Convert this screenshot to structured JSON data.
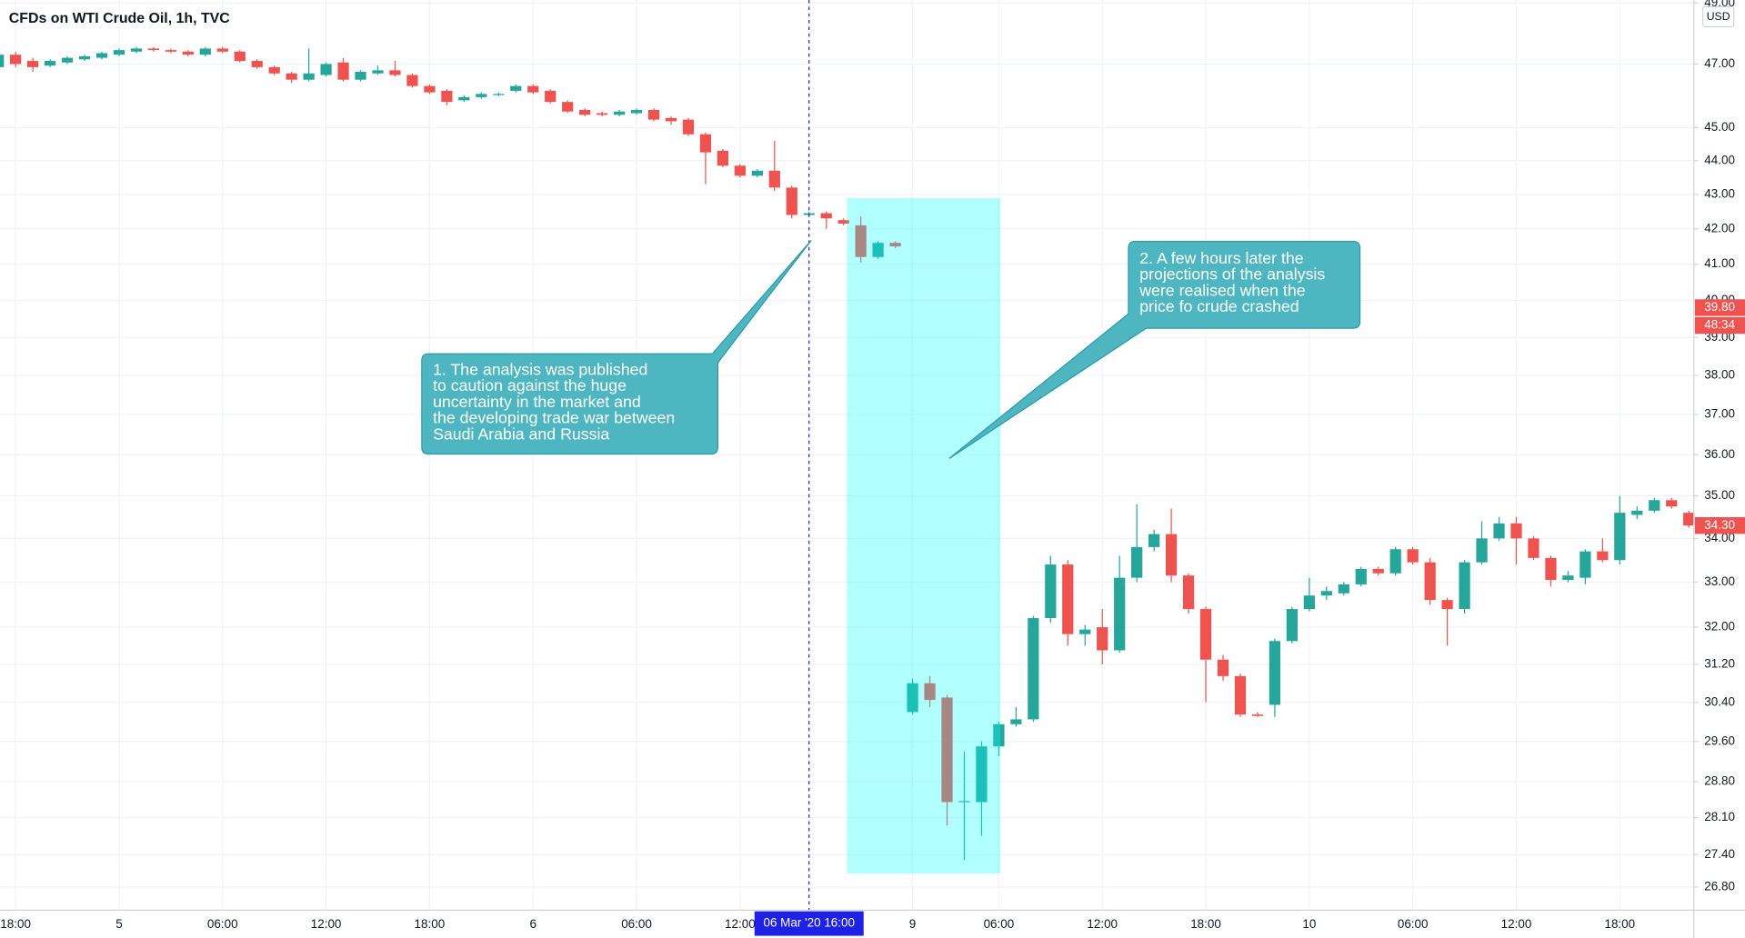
{
  "chart_data": {
    "type": "candlestick",
    "title": "CFDs on WTI Crude Oil, 1h, TVC",
    "currency": "USD",
    "log_scale": true,
    "grid": true,
    "up_color": "#26a69a",
    "down_color": "#ef5350",
    "categories": [
      null,
      "18:00",
      null,
      null,
      null,
      null,
      null,
      "5",
      null,
      null,
      null,
      null,
      null,
      "06:00",
      null,
      null,
      null,
      null,
      null,
      "12:00",
      null,
      null,
      null,
      null,
      null,
      "18:00",
      null,
      null,
      null,
      null,
      null,
      "6",
      null,
      null,
      null,
      null,
      null,
      "06:00",
      null,
      null,
      null,
      null,
      null,
      "12:00",
      null,
      null,
      null,
      "06 Mar '20  16:00",
      null,
      null,
      null,
      null,
      null,
      "9",
      null,
      null,
      null,
      null,
      "06:00",
      null,
      null,
      null,
      null,
      null,
      "12:00",
      null,
      null,
      null,
      null,
      null,
      "18:00",
      null,
      null,
      null,
      null,
      null,
      "10",
      null,
      null,
      null,
      null,
      null,
      "06:00",
      null,
      null,
      null,
      null,
      null,
      "12:00",
      null,
      null,
      null,
      null,
      null,
      "18:00",
      null,
      null,
      null,
      null
    ],
    "open": [
      46.9,
      47.3,
      47.1,
      46.95,
      47.05,
      47.15,
      47.2,
      47.3,
      47.4,
      47.5,
      47.45,
      47.4,
      47.3,
      47.5,
      47.4,
      47.1,
      46.9,
      46.7,
      46.5,
      46.65,
      47.05,
      46.5,
      46.7,
      46.8,
      46.65,
      46.3,
      46.15,
      45.85,
      45.95,
      46.02,
      46.15,
      46.3,
      46.15,
      45.8,
      45.55,
      45.45,
      45.4,
      45.45,
      45.55,
      45.3,
      45.25,
      44.8,
      44.3,
      43.85,
      43.55,
      43.7,
      43.2,
      42.4,
      42.45,
      42.25,
      42.1,
      41.2,
      41.6,
      30.2,
      30.8,
      30.5,
      28.4,
      28.4,
      29.5,
      29.95,
      30.05,
      32.2,
      33.4,
      31.85,
      32.0,
      31.5,
      33.1,
      33.8,
      34.1,
      33.15,
      32.4,
      31.3,
      30.95,
      30.15,
      30.35,
      31.7,
      32.4,
      32.7,
      32.75,
      32.95,
      33.3,
      33.2,
      33.75,
      33.45,
      32.6,
      32.4,
      33.45,
      34.0,
      34.35,
      34.0,
      33.55,
      33.05,
      33.1,
      33.7,
      33.5,
      34.55,
      34.65,
      34.9,
      34.6
    ],
    "high": [
      47.4,
      47.4,
      47.2,
      47.15,
      47.25,
      47.3,
      47.4,
      47.5,
      47.55,
      47.55,
      47.5,
      47.45,
      47.55,
      47.55,
      47.45,
      47.15,
      46.95,
      46.75,
      47.5,
      47.05,
      47.2,
      46.8,
      46.95,
      47.1,
      46.7,
      46.35,
      46.2,
      46.0,
      46.1,
      46.1,
      46.35,
      46.35,
      46.2,
      45.85,
      45.6,
      45.5,
      45.55,
      45.6,
      45.6,
      45.35,
      45.3,
      44.85,
      44.35,
      43.9,
      43.75,
      44.6,
      43.25,
      42.5,
      42.5,
      42.3,
      42.35,
      41.65,
      41.65,
      30.9,
      30.95,
      30.55,
      29.4,
      29.6,
      30.0,
      30.3,
      32.25,
      33.6,
      33.5,
      32.05,
      32.4,
      33.6,
      34.8,
      34.2,
      34.7,
      33.2,
      32.45,
      31.4,
      31.0,
      30.2,
      31.75,
      32.45,
      33.1,
      32.9,
      33.0,
      33.35,
      33.35,
      33.8,
      33.8,
      33.55,
      32.65,
      33.5,
      34.4,
      34.5,
      34.5,
      34.05,
      33.6,
      33.25,
      33.75,
      34.0,
      35.0,
      34.75,
      34.95,
      34.95,
      34.65
    ],
    "low": [
      46.85,
      46.9,
      46.75,
      46.9,
      47.0,
      47.1,
      47.15,
      47.25,
      47.35,
      47.4,
      47.35,
      47.25,
      47.25,
      47.35,
      47.05,
      46.85,
      46.65,
      46.4,
      46.45,
      46.6,
      46.45,
      46.45,
      46.65,
      46.6,
      46.25,
      46.05,
      45.7,
      45.8,
      45.9,
      45.98,
      46.1,
      46.05,
      45.75,
      45.45,
      45.35,
      45.35,
      45.35,
      45.4,
      45.2,
      45.1,
      44.75,
      43.3,
      43.8,
      43.5,
      43.5,
      43.1,
      42.3,
      42.35,
      42.0,
      42.1,
      41.05,
      41.15,
      41.45,
      30.15,
      30.3,
      27.95,
      27.3,
      27.75,
      29.3,
      29.9,
      30.0,
      32.1,
      31.6,
      31.6,
      31.2,
      31.45,
      33.0,
      33.7,
      33.0,
      32.3,
      30.4,
      30.85,
      30.1,
      30.1,
      30.1,
      31.65,
      32.35,
      32.6,
      32.7,
      32.9,
      33.15,
      33.15,
      33.4,
      32.5,
      31.6,
      32.3,
      33.4,
      33.95,
      33.4,
      33.5,
      32.9,
      33.0,
      32.95,
      33.45,
      33.4,
      34.45,
      34.6,
      34.7,
      34.25
    ],
    "close": [
      47.3,
      47.0,
      46.9,
      47.1,
      47.2,
      47.25,
      47.35,
      47.45,
      47.5,
      47.45,
      47.4,
      47.3,
      47.5,
      47.4,
      47.1,
      46.9,
      46.7,
      46.5,
      46.7,
      47.0,
      46.5,
      46.75,
      46.8,
      46.65,
      46.3,
      46.1,
      45.8,
      45.95,
      46.05,
      46.05,
      46.3,
      46.1,
      45.8,
      45.5,
      45.4,
      45.4,
      45.5,
      45.55,
      45.25,
      45.2,
      44.8,
      44.25,
      43.85,
      43.55,
      43.7,
      43.2,
      42.4,
      42.45,
      42.3,
      42.15,
      41.2,
      41.6,
      41.5,
      30.8,
      30.45,
      28.4,
      28.42,
      29.5,
      29.95,
      30.05,
      32.2,
      33.4,
      31.85,
      31.95,
      31.5,
      33.1,
      33.8,
      34.1,
      33.15,
      32.4,
      31.3,
      30.95,
      30.15,
      30.12,
      31.7,
      32.4,
      32.7,
      32.8,
      32.95,
      33.3,
      33.2,
      33.75,
      33.45,
      32.6,
      32.4,
      33.45,
      34.0,
      34.35,
      34.0,
      33.55,
      33.05,
      33.15,
      33.7,
      33.5,
      34.6,
      34.65,
      34.9,
      34.75,
      34.3
    ],
    "ylim": [
      26.38,
      49.1
    ],
    "yticks": [
      {
        "value": 49,
        "label": "49.00"
      },
      {
        "value": 47,
        "label": "47.00"
      },
      {
        "value": 45,
        "label": "45.00"
      },
      {
        "value": 44,
        "label": "44.00"
      },
      {
        "value": 43,
        "label": "43.00"
      },
      {
        "value": 42,
        "label": "42.00"
      },
      {
        "value": 41,
        "label": "41.00"
      },
      {
        "value": 40,
        "label": "40.00"
      },
      {
        "value": 39,
        "label": "39.00"
      },
      {
        "value": 38,
        "label": "38.00"
      },
      {
        "value": 37,
        "label": "37.00"
      },
      {
        "value": 36,
        "label": "36.00"
      },
      {
        "value": 35,
        "label": "35.00"
      },
      {
        "value": 34,
        "label": "34.00"
      },
      {
        "value": 33,
        "label": "33.00"
      },
      {
        "value": 32,
        "label": "32.00"
      },
      {
        "value": 31.2,
        "label": "31.20"
      },
      {
        "value": 30.4,
        "label": "30.40"
      },
      {
        "value": 29.6,
        "label": "29.60"
      },
      {
        "value": 28.8,
        "label": "28.80"
      },
      {
        "value": 28.1,
        "label": "28.10"
      },
      {
        "value": 27.4,
        "label": "27.40"
      },
      {
        "value": 26.8,
        "label": "26.80"
      }
    ],
    "price_labels": [
      {
        "value": 39.8,
        "label": "39.80",
        "countdown": "48:34",
        "color": "#ef5350"
      },
      {
        "value": 34.3,
        "label": "34.30",
        "color": "#ef5350"
      }
    ],
    "annotations": [
      {
        "lines": [
          "1. The analysis was published",
          "to caution against the huge",
          "uncertainty in the market and",
          "the developing trade war between",
          "Saudi Arabia and Russia"
        ]
      },
      {
        "lines": [
          "2. A few hours later the",
          "projections of the analysis",
          "were realised when the",
          "price fo crude crashed"
        ]
      }
    ]
  }
}
